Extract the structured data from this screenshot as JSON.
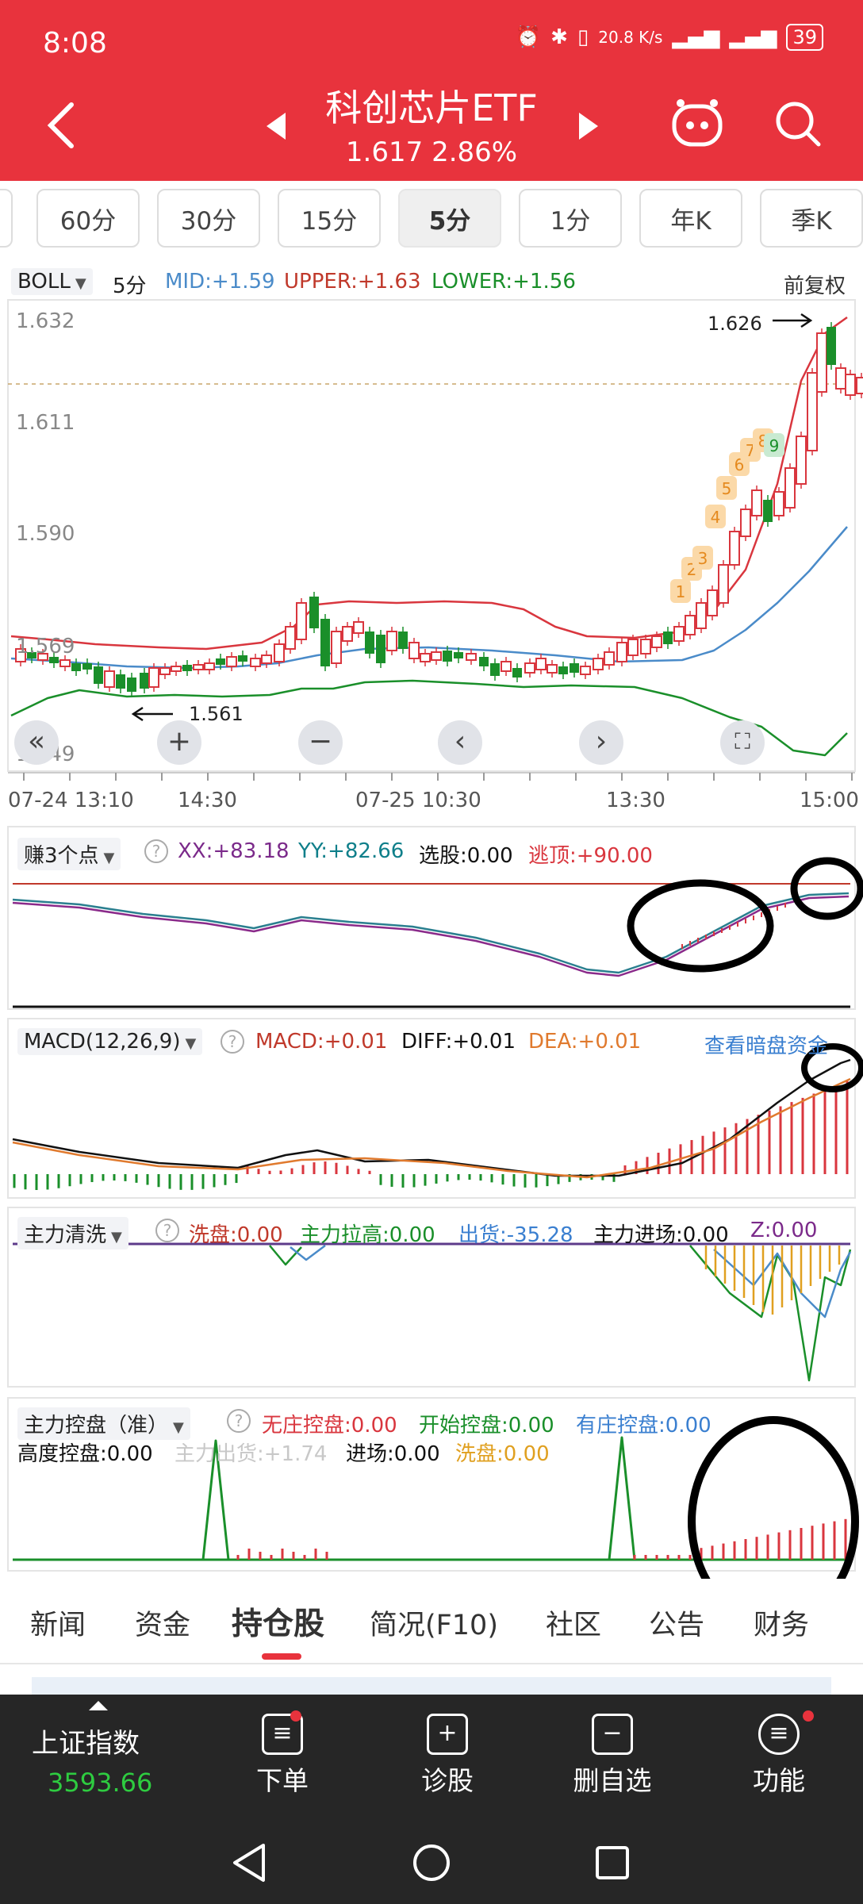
{
  "status_bar": {
    "time": "8:08",
    "network_speed": "20.8 K/s",
    "battery": "39"
  },
  "header": {
    "title": "科创芯片ETF",
    "subtitle": "1.617 2.86%",
    "back_icon": "chevron-left-icon",
    "robot_icon": "robot-icon",
    "search_icon": "search-icon"
  },
  "period_tabs": [
    "60分",
    "30分",
    "15分",
    "5分",
    "1分",
    "年K",
    "季K"
  ],
  "active_period": "5分",
  "boll": {
    "indicator": "BOLL",
    "period": "5分",
    "mid": "MID:+1.59",
    "upper": "UPPER:+1.63",
    "lower": "LOWER:+1.56",
    "adjust": "前复权",
    "y_ticks": [
      "1.632",
      "1.611",
      "1.590",
      "1.569",
      "1.549"
    ],
    "high_mark": "1.626",
    "low_mark": "1.561",
    "td_counts": [
      "1",
      "2",
      "3",
      "4",
      "5",
      "6",
      "7",
      "8",
      "9"
    ]
  },
  "time_axis": [
    "07-24 13:10",
    "14:30",
    "07-25 10:30",
    "13:30",
    "15:00"
  ],
  "panel_zsd": {
    "name": "赚3个点",
    "xx": "XX:+83.18",
    "yy": "YY:+82.66",
    "xg": "选股:0.00",
    "tt": "逃顶:+90.00"
  },
  "panel_macd": {
    "name": "MACD(12,26,9)",
    "macd": "MACD:+0.01",
    "diff": "DIFF:+0.01",
    "dea": "DEA:+0.01",
    "link": "查看暗盘资金"
  },
  "panel_zlqx": {
    "name": "主力清洗",
    "xp": "洗盘:0.00",
    "zllg": "主力拉高:0.00",
    "ch": "出货:-35.28",
    "zljc": "主力进场:0.00",
    "z": "Z:0.00"
  },
  "panel_zlkp": {
    "name": "主力控盘（准）",
    "wzkp": "无庄控盘:0.00",
    "kskp": "开始控盘:0.00",
    "yzkp": "有庄控盘:0.00",
    "gdkp": "高度控盘:0.00",
    "zlch": "主力出货:+1.74",
    "jc": "进场:0.00",
    "xp": "洗盘:0.00"
  },
  "bottom_tabs": [
    "新闻",
    "资金",
    "持仓股",
    "简况(F10)",
    "社区",
    "公告",
    "财务"
  ],
  "active_bottom_tab": "持仓股",
  "nav": {
    "index_name": "上证指数",
    "index_value": "3593.66",
    "order": "下单",
    "diagnose": "诊股",
    "remove": "删自选",
    "func": "功能"
  },
  "colors": {
    "brand_red": "#e8333d",
    "up_red": "#d9363e",
    "down_green": "#1a8f2a",
    "mid_blue": "#4a8bc9"
  }
}
